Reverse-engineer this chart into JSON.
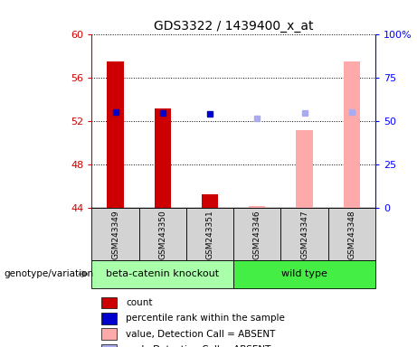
{
  "title": "GDS3322 / 1439400_x_at",
  "samples": [
    "GSM243349",
    "GSM243350",
    "GSM243351",
    "GSM243346",
    "GSM243347",
    "GSM243348"
  ],
  "ylim_left": [
    44,
    60
  ],
  "ylim_right": [
    0,
    100
  ],
  "yticks_left": [
    44,
    48,
    52,
    56,
    60
  ],
  "ytick_labels_right": [
    "0",
    "25",
    "50",
    "75",
    "100%"
  ],
  "count_values": [
    57.5,
    53.2,
    45.3,
    null,
    null,
    null
  ],
  "count_color": "#cc0000",
  "percentile_present": [
    52.9,
    52.8,
    52.7,
    null,
    null,
    null
  ],
  "percentile_color": "#0000cc",
  "absent_value_bars": [
    null,
    null,
    null,
    44.2,
    51.2,
    57.5
  ],
  "absent_value_color": "#ffaaaa",
  "absent_rank_dots": [
    null,
    null,
    null,
    52.3,
    52.8,
    52.9
  ],
  "absent_rank_color": "#aaaaee",
  "group_bg_color_knockout": "#aaffaa",
  "group_bg_color_wildtype": "#44ee44",
  "sample_bg_color": "#d3d3d3",
  "legend_items": [
    {
      "color": "#cc0000",
      "label": "count"
    },
    {
      "color": "#0000cc",
      "label": "percentile rank within the sample"
    },
    {
      "color": "#ffaaaa",
      "label": "value, Detection Call = ABSENT"
    },
    {
      "color": "#aaaaee",
      "label": "rank, Detection Call = ABSENT"
    }
  ],
  "group_info": [
    {
      "label": "beta-catenin knockout",
      "indices": [
        0,
        1,
        2
      ],
      "color": "#aaffaa"
    },
    {
      "label": "wild type",
      "indices": [
        3,
        4,
        5
      ],
      "color": "#44ee44"
    }
  ]
}
